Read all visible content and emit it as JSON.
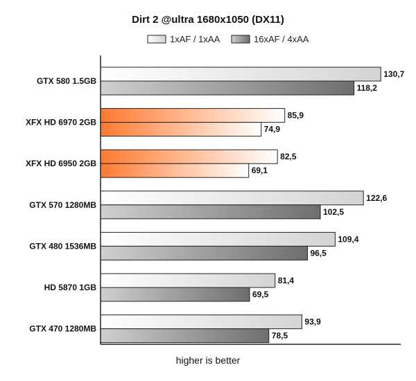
{
  "chart_data": {
    "type": "bar",
    "orientation": "horizontal",
    "title": "Dirt 2 @ultra 1680x1050 (DX11)",
    "xlabel": "higher is better",
    "ylabel": "",
    "xlim": [
      0,
      140
    ],
    "grid": false,
    "legend_position": "top",
    "categories": [
      "GTX 580 1.5GB",
      "XFX HD 6970 2GB",
      "XFX HD 6950 2GB",
      "GTX 570 1280MB",
      "GTX 480 1536MB",
      "HD 5870 1GB",
      "GTX 470 1280MB"
    ],
    "highlighted_categories": [
      "XFX HD 6970 2GB",
      "XFX HD 6950 2GB"
    ],
    "series": [
      {
        "name": "1xAF / 1xAA",
        "values": [
          130.7,
          85.9,
          82.5,
          122.6,
          109.4,
          81.4,
          93.9
        ],
        "labels": [
          "130,7",
          "85,9",
          "82,5",
          "122,6",
          "109,4",
          "81,4",
          "93,9"
        ]
      },
      {
        "name": "16xAF / 4xAA",
        "values": [
          118.2,
          74.9,
          69.1,
          102.5,
          96.5,
          69.5,
          78.5
        ],
        "labels": [
          "118,2",
          "74,9",
          "69,1",
          "102,5",
          "96,5",
          "69,5",
          "78,5"
        ]
      }
    ],
    "colors": {
      "light_series": [
        "#ffffff",
        "#d4d4d4"
      ],
      "dark_series": [
        "#d0d0d0",
        "#6e6e6e"
      ],
      "highlight": [
        "#ffffff",
        "#ff7a30"
      ],
      "bar_border": "#222222"
    }
  }
}
